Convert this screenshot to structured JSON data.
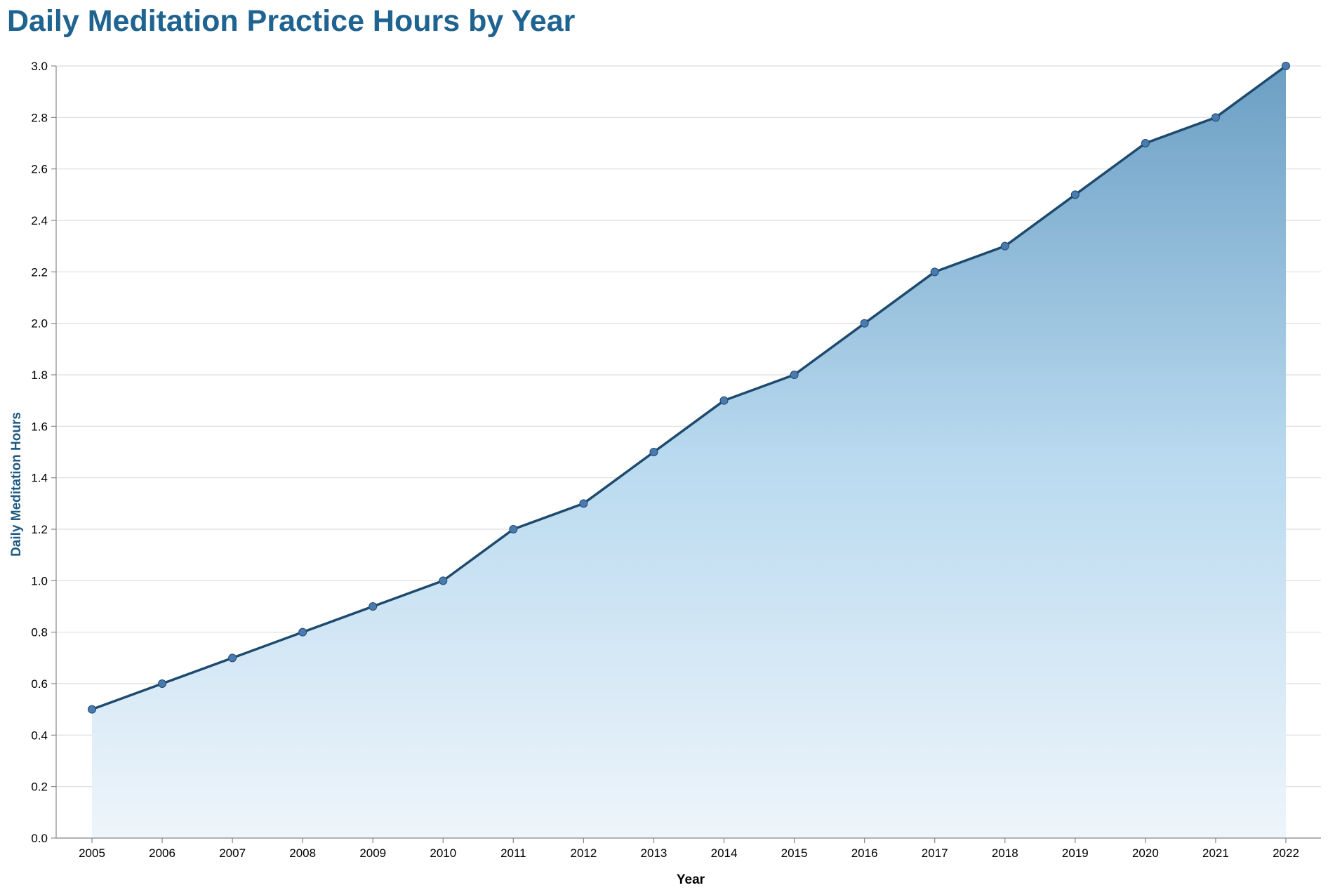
{
  "chart_data": {
    "type": "area",
    "title": "Daily Meditation Practice Hours by Year",
    "xlabel": "Year",
    "ylabel": "Daily Meditation Hours",
    "x": [
      2005,
      2006,
      2007,
      2008,
      2009,
      2010,
      2011,
      2012,
      2013,
      2014,
      2015,
      2016,
      2017,
      2018,
      2019,
      2020,
      2021,
      2022
    ],
    "values": [
      0.5,
      0.6,
      0.7,
      0.8,
      0.9,
      1.0,
      1.2,
      1.3,
      1.5,
      1.7,
      1.8,
      2.0,
      2.2,
      2.3,
      2.5,
      2.7,
      2.8,
      3.0
    ],
    "ylim": [
      0,
      3.0
    ],
    "yticks": [
      0.0,
      0.2,
      0.4,
      0.6,
      0.8,
      1.0,
      1.2,
      1.4,
      1.6,
      1.8,
      2.0,
      2.2,
      2.4,
      2.6,
      2.8,
      3.0
    ],
    "grid": true,
    "colors": {
      "title": "#1f6391",
      "axis_title_y": "#1f5a83",
      "axis_title_x": "#000000",
      "line": "#1d4a6e",
      "point": "#4a7ab0",
      "area_top": "#6b9fc4",
      "area_mid": "#b8d9ef",
      "area_bottom": "#eef5fb"
    }
  }
}
